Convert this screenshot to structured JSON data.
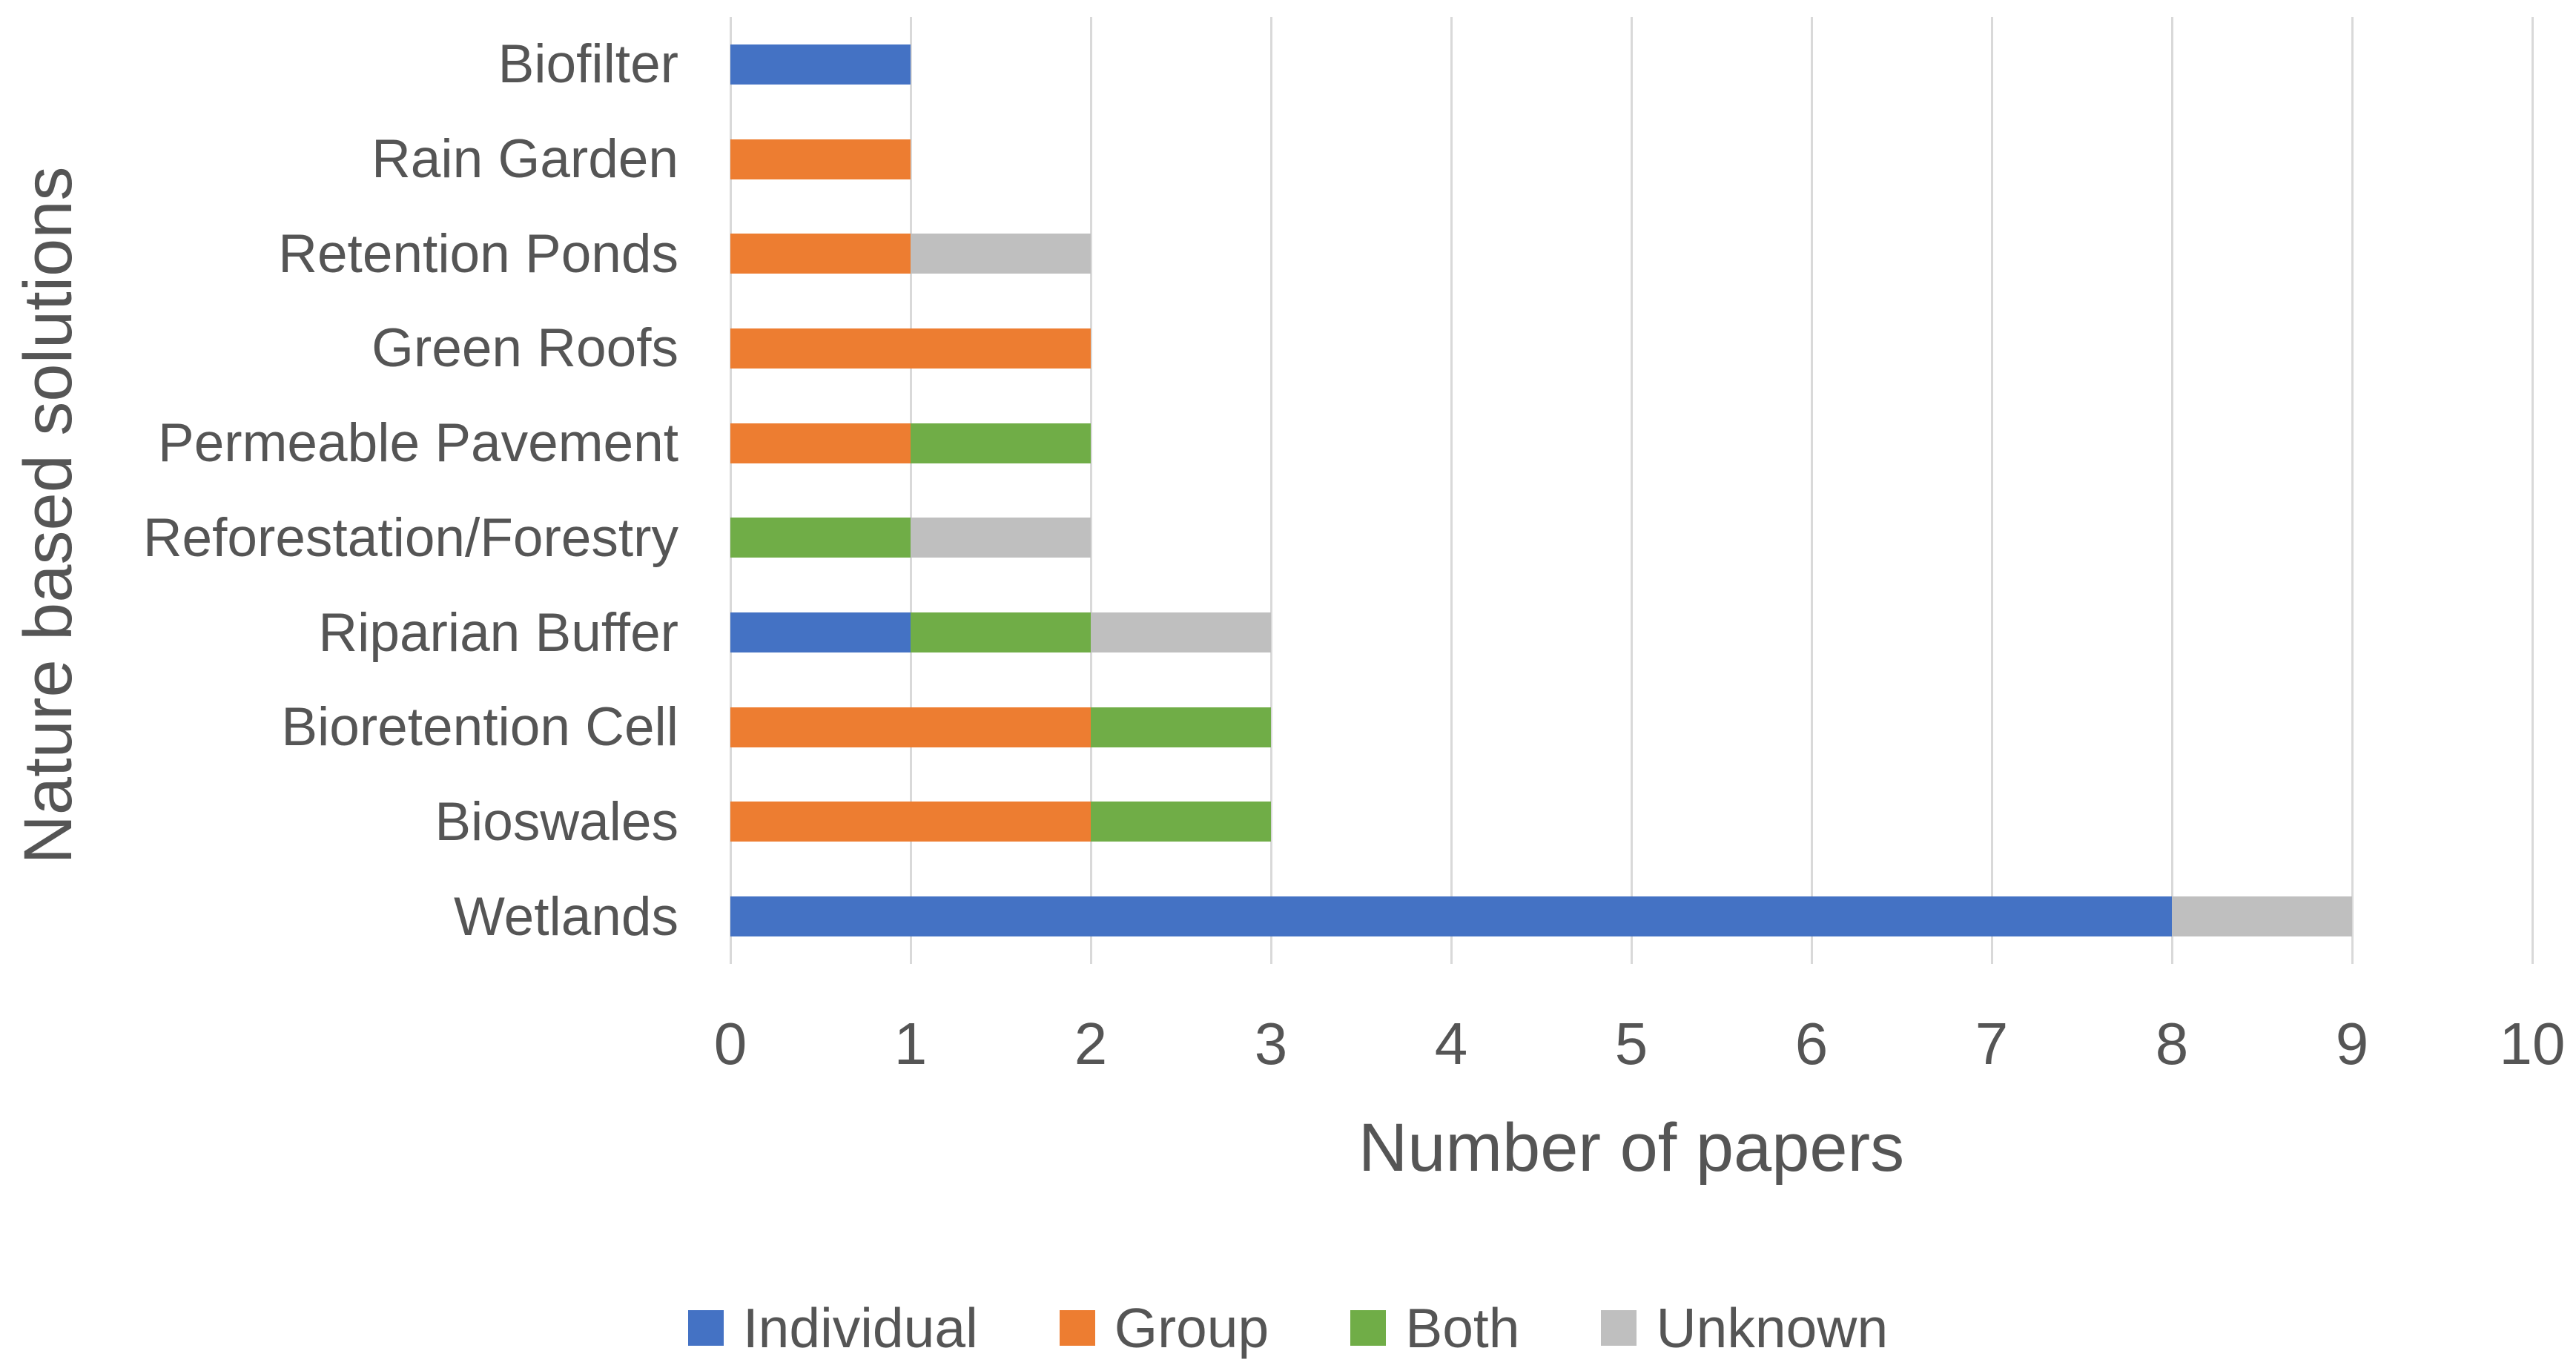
{
  "chart_data": {
    "type": "bar",
    "orientation": "horizontal",
    "stacked": true,
    "title": "",
    "xlabel": "Number of papers",
    "ylabel": "Nature based solutions",
    "xlim": [
      0,
      10
    ],
    "xticks": [
      0,
      1,
      2,
      3,
      4,
      5,
      6,
      7,
      8,
      9,
      10
    ],
    "grid": true,
    "gridline_color": "#D9D9D9",
    "text_color": "#555555",
    "legend_position": "bottom",
    "categories": [
      "Biofilter",
      "Rain Garden",
      "Retention Ponds",
      "Green Roofs",
      "Permeable Pavement",
      "Reforestation/Forestry",
      "Riparian Buffer",
      "Bioretention Cell",
      "Bioswales",
      "Wetlands"
    ],
    "series": [
      {
        "name": "Individual",
        "color": "#4472C4",
        "values": [
          1,
          0,
          0,
          0,
          0,
          0,
          1,
          0,
          0,
          8
        ]
      },
      {
        "name": "Group",
        "color": "#ED7D31",
        "values": [
          0,
          1,
          1,
          2,
          1,
          0,
          0,
          2,
          2,
          0
        ]
      },
      {
        "name": "Both",
        "color": "#70AD47",
        "values": [
          0,
          0,
          0,
          0,
          1,
          1,
          1,
          1,
          1,
          0
        ]
      },
      {
        "name": "Unknown",
        "color": "#BFBFBF",
        "values": [
          0,
          0,
          1,
          0,
          0,
          1,
          1,
          0,
          0,
          1
        ]
      }
    ]
  }
}
